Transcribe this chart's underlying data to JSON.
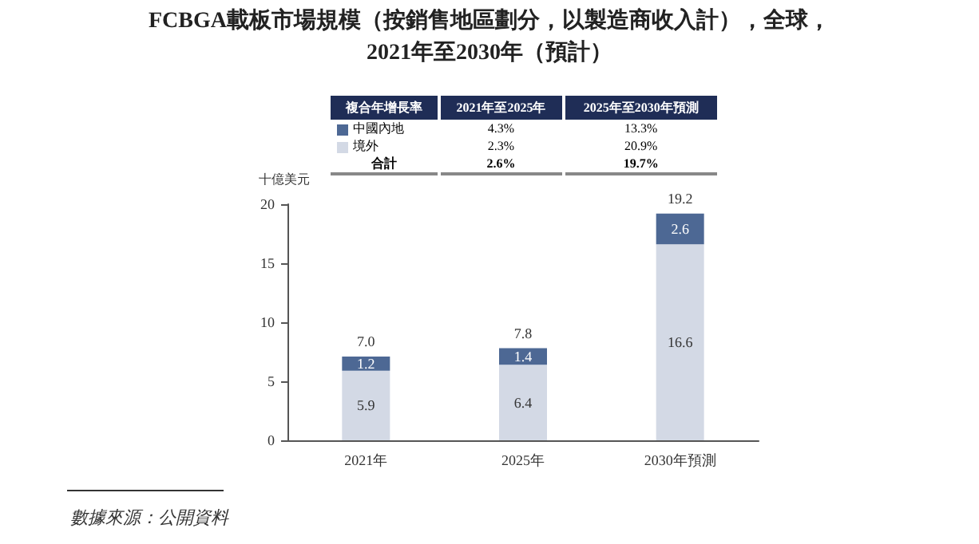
{
  "chart_data": {
    "type": "bar",
    "title": "FCBGA載板市場規模（按銷售地區劃分，以製造商收入計），全球，\n2021年至2030年（預計）",
    "ylabel": "十億美元",
    "categories": [
      "2021年",
      "2025年",
      "2030年預測"
    ],
    "series": [
      {
        "name": "境外",
        "color": "#d3d9e5",
        "values": [
          5.9,
          6.4,
          16.6
        ]
      },
      {
        "name": "中國內地",
        "color": "#4d6894",
        "values": [
          1.2,
          1.4,
          2.6
        ]
      }
    ],
    "stacked": true,
    "data_labels": true,
    "totals": [
      "7.0",
      "7.8",
      "19.2"
    ],
    "ylim": [
      0,
      20
    ],
    "yticks": [
      0,
      5,
      10,
      15,
      20
    ],
    "grid": false,
    "legend": "top",
    "annotations": [
      "複合年增長率",
      "2021年至2025年",
      "2025年至2030年預測",
      "4.3%",
      "13.3%",
      "2.3%",
      "20.9%",
      "合計",
      "2.6%",
      "19.7%",
      "數據來源：公開資料"
    ]
  }
}
